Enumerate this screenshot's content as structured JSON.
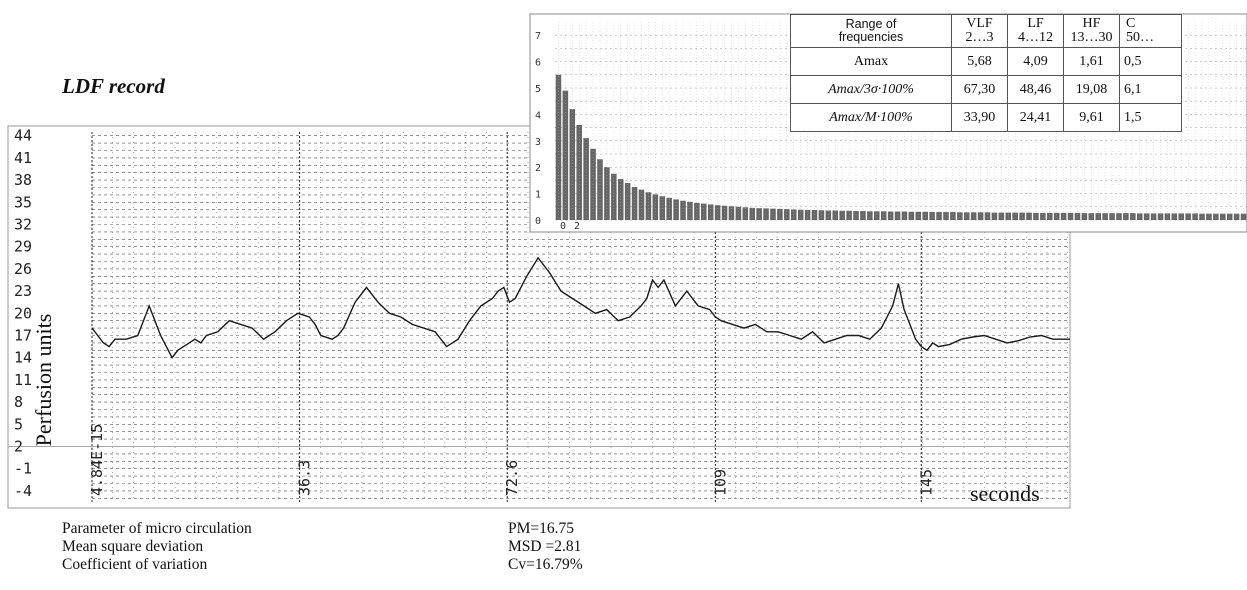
{
  "title": "LDF record",
  "ylabel": "Perfusion units",
  "xunits": "seconds",
  "colors": {
    "line": "#1a1a1a",
    "grid": "#555555",
    "spectrum": "#666666"
  },
  "chart_data": [
    {
      "type": "line",
      "title": "LDF record",
      "ylabel": "Perfusion units",
      "xlabel": "seconds",
      "y_ticks": [
        "44",
        "41",
        "38",
        "35",
        "32",
        "29",
        "26",
        "23",
        "20",
        "17",
        "14",
        "11",
        "8",
        "5",
        "2",
        "-1",
        "-4"
      ],
      "y_tick_values": [
        44,
        41,
        38,
        35,
        32,
        29,
        26,
        23,
        20,
        17,
        14,
        11,
        8,
        5,
        2,
        -1,
        -4
      ],
      "x_ticks": [
        "4.84E-15",
        "36.3",
        "72.6",
        "109",
        "145"
      ],
      "x_tick_values": [
        0,
        36.3,
        72.6,
        109,
        145
      ],
      "xlim": [
        0,
        171
      ],
      "ylim": [
        -5.5,
        44.5
      ],
      "grid": true,
      "series": [
        {
          "x": [
            0,
            1,
            2,
            3,
            4,
            6,
            8,
            10,
            12,
            14,
            15,
            16,
            17,
            18,
            19,
            20,
            22,
            24,
            26,
            28,
            30,
            32,
            34,
            36,
            38,
            39,
            40,
            42,
            43,
            44,
            46,
            48,
            49,
            50,
            52,
            54,
            56,
            58,
            60,
            61,
            62,
            63,
            64,
            66,
            68,
            70,
            71,
            72,
            73,
            74,
            76,
            78,
            80,
            82,
            84,
            86,
            88,
            90,
            92,
            94,
            96,
            97,
            98,
            99,
            100,
            102,
            104,
            106,
            108,
            109,
            110,
            112,
            114,
            116,
            118,
            120,
            122,
            124,
            126,
            128,
            130,
            132,
            134,
            136,
            138,
            140,
            141,
            142,
            143,
            144,
            145,
            146,
            147,
            148,
            150,
            152,
            154,
            156,
            158,
            160,
            162,
            164,
            166,
            168,
            171
          ],
          "y": [
            18,
            17,
            16,
            15.5,
            16.5,
            16.5,
            17,
            21,
            17,
            14,
            15,
            15.5,
            16,
            16.5,
            16,
            17,
            17.5,
            19,
            18.5,
            18,
            16.5,
            17.5,
            19,
            20,
            19.5,
            18.5,
            17,
            16.5,
            17,
            18,
            21.5,
            23.5,
            22.5,
            21.5,
            20,
            19.5,
            18.5,
            18,
            17.5,
            16.5,
            15.5,
            16,
            16.5,
            19,
            21,
            22,
            23,
            23.5,
            21.5,
            22,
            25,
            27.5,
            25.5,
            23,
            22,
            21,
            20,
            20.5,
            19,
            19.5,
            21,
            22,
            24.5,
            23.5,
            24.5,
            21,
            23,
            21,
            20.5,
            19.5,
            19,
            18.5,
            18,
            18.5,
            17.5,
            17.5,
            17,
            16.5,
            17.5,
            16,
            16.5,
            17,
            17,
            16.5,
            18,
            21,
            24,
            20.5,
            18.5,
            16.5,
            15.5,
            15,
            16,
            15.5,
            15.8,
            16.5,
            16.8,
            17,
            16.5,
            16,
            16.3,
            16.8,
            17,
            16.5,
            16.5
          ]
        }
      ]
    },
    {
      "type": "bar",
      "title": "",
      "y_ticks": [
        "7",
        "6",
        "5",
        "4",
        "3",
        "2",
        "1",
        "0"
      ],
      "y_tick_values": [
        7,
        6,
        5,
        4,
        3,
        2,
        1,
        0
      ],
      "x_ticks": [
        "0",
        "2"
      ],
      "ylim": [
        0,
        7.5
      ],
      "grid": true,
      "series": [
        {
          "values": [
            5.5,
            4.9,
            4.2,
            3.6,
            3.1,
            2.7,
            2.3,
            2.0,
            1.75,
            1.55,
            1.4,
            1.25,
            1.15,
            1.05,
            0.97,
            0.9,
            0.84,
            0.78,
            0.73,
            0.69,
            0.65,
            0.62,
            0.59,
            0.56,
            0.54,
            0.52,
            0.5,
            0.48,
            0.46,
            0.45,
            0.44,
            0.43,
            0.42,
            0.41,
            0.4,
            0.39,
            0.38,
            0.38,
            0.37,
            0.36,
            0.36,
            0.35,
            0.35,
            0.34,
            0.34,
            0.33,
            0.33,
            0.33,
            0.32,
            0.32,
            0.32,
            0.31,
            0.31,
            0.31,
            0.3,
            0.3,
            0.3,
            0.3,
            0.29,
            0.29,
            0.29,
            0.29,
            0.29,
            0.28,
            0.28,
            0.28,
            0.28,
            0.28,
            0.28,
            0.27,
            0.27,
            0.27,
            0.27,
            0.27,
            0.27,
            0.27,
            0.26,
            0.26,
            0.26,
            0.26,
            0.26,
            0.26,
            0.26,
            0.26,
            0.25,
            0.25,
            0.25,
            0.25,
            0.25,
            0.25,
            0.25,
            0.25,
            0.25,
            0.24,
            0.24,
            0.24,
            0.24,
            0.24,
            0.24,
            0.24
          ]
        }
      ]
    },
    {
      "type": "table",
      "header_label": [
        "Range of",
        "frequencies"
      ],
      "columns": [
        {
          "name": "VLF",
          "range": "2…3"
        },
        {
          "name": "LF",
          "range": "4…12"
        },
        {
          "name": "HF",
          "range": "13…30"
        },
        {
          "name": "C",
          "range": "50…"
        }
      ],
      "rows": [
        {
          "label": "Amax",
          "values": [
            "5,68",
            "4,09",
            "1,61",
            "0,5"
          ]
        },
        {
          "label": "Amax/3σ·100%",
          "values": [
            "67,30",
            "48,46",
            "19,08",
            "6,1"
          ]
        },
        {
          "label": "Amax/M·100%",
          "values": [
            "33,90",
            "24,41",
            "9,61",
            "1,5"
          ]
        }
      ]
    }
  ],
  "params": [
    {
      "name": "Parameter of micro circulation",
      "value": "PM=16.75"
    },
    {
      "name": "Mean square deviation",
      "value": "MSD =2.81"
    },
    {
      "name": "Coefficient of variation",
      "value": "Cv=16.79%"
    }
  ]
}
